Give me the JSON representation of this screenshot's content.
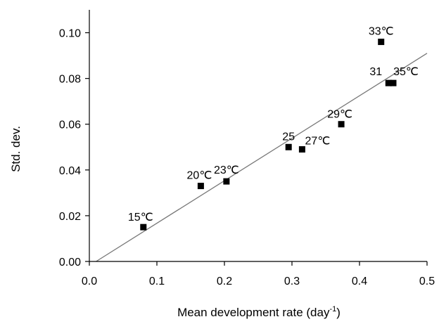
{
  "chart_data": {
    "type": "scatter",
    "title": "",
    "xlabel": "Mean development rate (day",
    "xlabel_sup": "-1",
    "xlabel_end": ")",
    "ylabel": "Std. dev.",
    "xlim": [
      0,
      0.5
    ],
    "ylim": [
      0,
      0.11
    ],
    "xticks": [
      "0.0",
      "0.1",
      "0.2",
      "0.3",
      "0.4",
      "0.5"
    ],
    "yticks": [
      "0.00",
      "0.02",
      "0.04",
      "0.06",
      "0.08",
      "0.10"
    ],
    "grid": false,
    "points": [
      {
        "x": 0.08,
        "y": 0.015,
        "label": "15℃"
      },
      {
        "x": 0.165,
        "y": 0.033,
        "label": "20℃"
      },
      {
        "x": 0.203,
        "y": 0.035,
        "label": "23℃"
      },
      {
        "x": 0.295,
        "y": 0.05,
        "label": "25"
      },
      {
        "x": 0.315,
        "y": 0.049,
        "label": "27℃"
      },
      {
        "x": 0.373,
        "y": 0.06,
        "label": "29℃"
      },
      {
        "x": 0.432,
        "y": 0.096,
        "label": "33℃"
      },
      {
        "x": 0.443,
        "y": 0.078,
        "label": "31"
      },
      {
        "x": 0.45,
        "y": 0.078,
        "label": "35℃"
      }
    ],
    "trendline": {
      "x": [
        0.01,
        0.5
      ],
      "y": [
        0.0,
        0.091
      ]
    },
    "colors": {
      "marker": "#000000",
      "trendline": "#777777",
      "axis": "#000000"
    }
  }
}
